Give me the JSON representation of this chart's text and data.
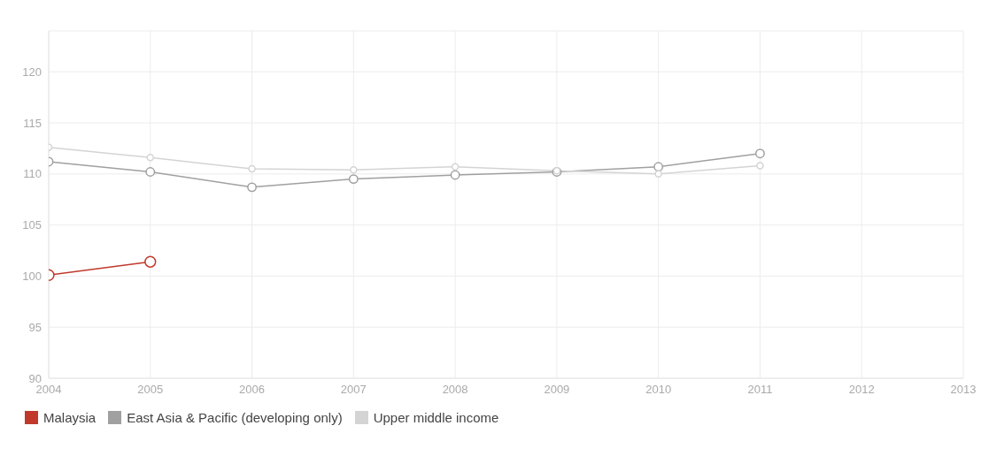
{
  "chart_data": {
    "type": "line",
    "x": [
      2004,
      2005,
      2006,
      2007,
      2008,
      2009,
      2010,
      2011
    ],
    "series": [
      {
        "name": "Malaysia",
        "color": "#c0392b",
        "values": [
          100.1,
          101.4,
          null,
          null,
          null,
          null,
          null,
          null
        ]
      },
      {
        "name": "East Asia & Pacific (developing only)",
        "color": "#a0a0a0",
        "values": [
          111.2,
          110.2,
          108.7,
          109.5,
          109.9,
          110.2,
          110.7,
          112.0
        ]
      },
      {
        "name": "Upper middle income",
        "color": "#d4d4d4",
        "values": [
          112.6,
          111.6,
          110.5,
          110.4,
          110.7,
          110.3,
          110.0,
          110.8
        ]
      }
    ],
    "xlim": [
      2004,
      2013
    ],
    "xticks": [
      2004,
      2005,
      2006,
      2007,
      2008,
      2009,
      2010,
      2011,
      2012,
      2013
    ],
    "ylim": [
      90,
      124
    ],
    "yticks": [
      90,
      95,
      100,
      105,
      110,
      115,
      120
    ],
    "grid": true,
    "legend": "bottom left",
    "marker": "circle",
    "line_style": "solid"
  }
}
